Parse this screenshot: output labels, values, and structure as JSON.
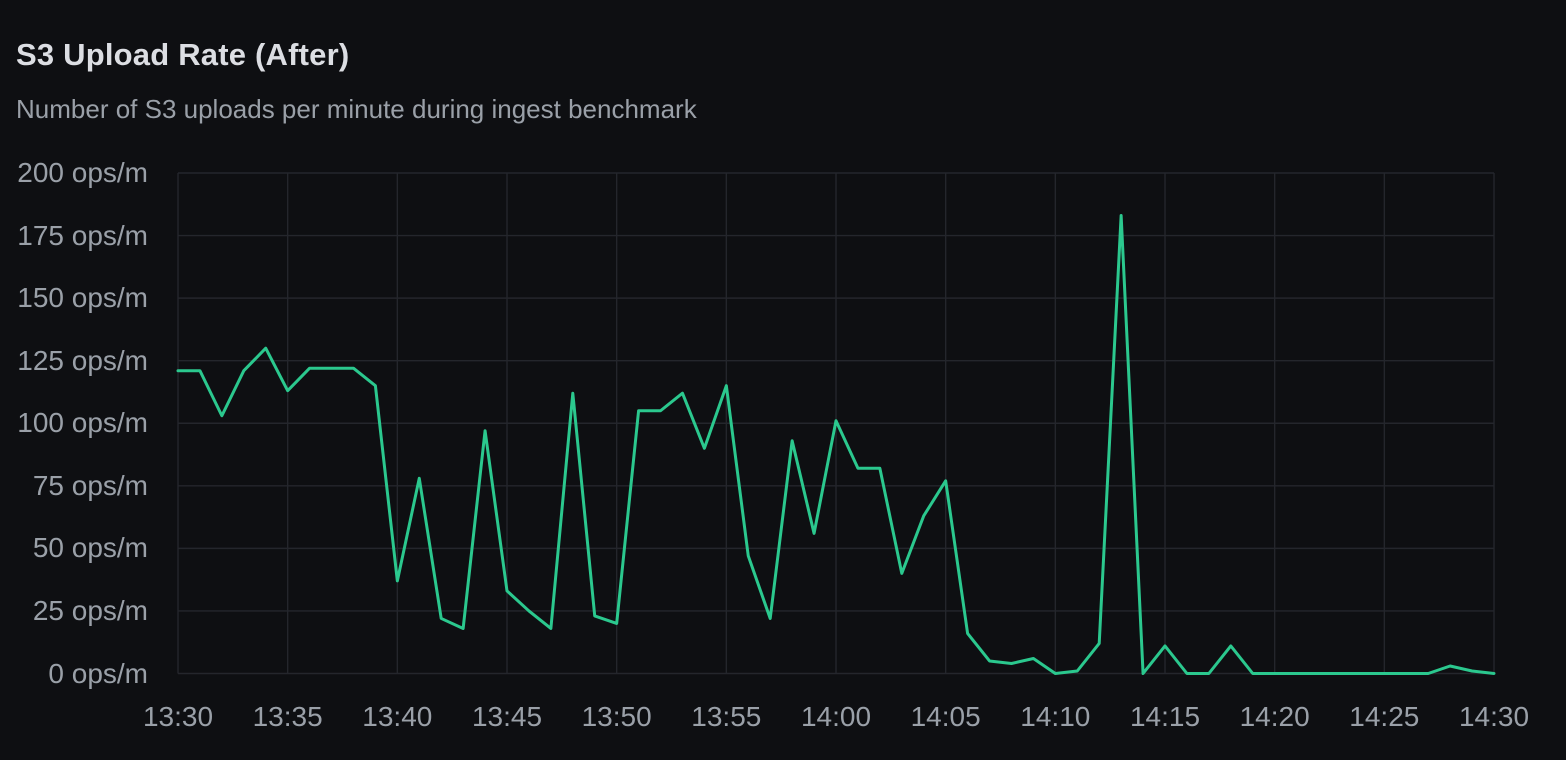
{
  "header": {
    "title": "S3 Upload Rate (After)",
    "subtitle": "Number of S3 uploads per minute during ingest benchmark"
  },
  "colors": {
    "background": "#0e0f12",
    "grid": "#24262c",
    "series_line": "#2bc88e",
    "title_text": "#dcdee3",
    "secondary_text": "#9aa0a8"
  },
  "chart_data": {
    "type": "line",
    "title": "S3 Upload Rate (After)",
    "subtitle": "Number of S3 uploads per minute during ingest benchmark",
    "unit": "ops/m",
    "grid": true,
    "legend_position": "none",
    "ylim": [
      0,
      200
    ],
    "y_ticks": [
      200,
      175,
      150,
      125,
      100,
      75,
      50,
      25,
      0
    ],
    "y_tick_labels": [
      "200 ops/m",
      "175 ops/m",
      "150 ops/m",
      "125 ops/m",
      "100 ops/m",
      "75 ops/m",
      "50 ops/m",
      "25 ops/m",
      "0 ops/m"
    ],
    "x_tick_labels": [
      "13:30",
      "13:35",
      "13:40",
      "13:45",
      "13:50",
      "13:55",
      "14:00",
      "14:05",
      "14:10",
      "14:15",
      "14:20",
      "14:25",
      "14:30"
    ],
    "x_range_minutes": [
      0,
      60
    ],
    "series": [
      {
        "name": "S3 uploads per minute",
        "color": "#2bc88e",
        "start_time": "13:30",
        "end_time": "14:30",
        "step_minutes": 1,
        "values": [
          121,
          121,
          103,
          121,
          130,
          113,
          122,
          122,
          122,
          115,
          37,
          78,
          22,
          18,
          97,
          33,
          25,
          18,
          112,
          23,
          20,
          105,
          105,
          112,
          90,
          115,
          47,
          22,
          93,
          56,
          101,
          82,
          82,
          40,
          63,
          77,
          16,
          5,
          4,
          6,
          0,
          1,
          12,
          183,
          0,
          11,
          0,
          0,
          11,
          0,
          0,
          0,
          0,
          0,
          0,
          0,
          0,
          0,
          3,
          1,
          0
        ]
      }
    ]
  }
}
